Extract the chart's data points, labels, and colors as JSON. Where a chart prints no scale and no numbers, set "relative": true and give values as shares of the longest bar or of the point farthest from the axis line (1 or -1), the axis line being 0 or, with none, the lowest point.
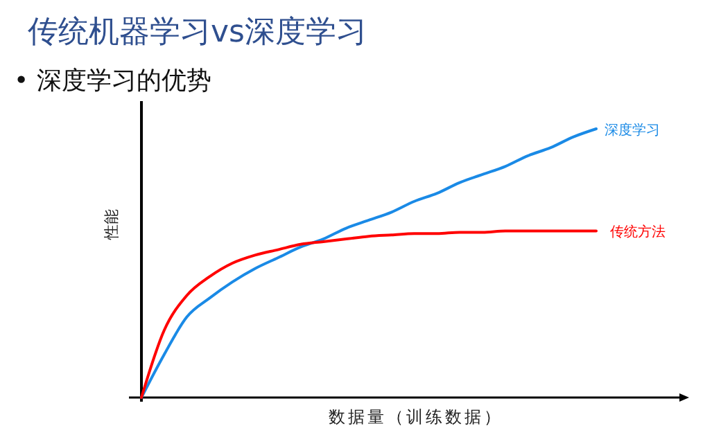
{
  "chart_data": {
    "type": "line",
    "title": "传统机器学习vs深度学习",
    "subtitle": "• 深度学习的优势",
    "xlabel": "数据量（训练数据）",
    "ylabel": "性能",
    "relative": true,
    "legend": false,
    "marker": "none",
    "line_style": "solid",
    "categories": [
      null,
      null,
      null,
      null,
      null,
      null,
      null,
      null,
      null,
      null,
      null,
      null,
      null,
      null,
      null,
      null,
      null,
      null,
      null,
      null,
      null
    ],
    "series": [
      {
        "name": "深度学习",
        "color": "#1a8ae6",
        "values": [
          0,
          0.16,
          0.3,
          0.37,
          0.43,
          0.48,
          0.52,
          0.56,
          0.59,
          0.63,
          0.66,
          0.69,
          0.73,
          0.76,
          0.8,
          0.83,
          0.86,
          0.9,
          0.93,
          0.97,
          1
        ]
      },
      {
        "name": "传统方法",
        "color": "#ff0000",
        "values": [
          0,
          0.25,
          0.38,
          0.45,
          0.5,
          0.53,
          0.55,
          0.57,
          0.58,
          0.59,
          0.6,
          0.605,
          0.61,
          0.61,
          0.615,
          0.615,
          0.62,
          0.62,
          0.62,
          0.62,
          0.62
        ]
      }
    ]
  }
}
